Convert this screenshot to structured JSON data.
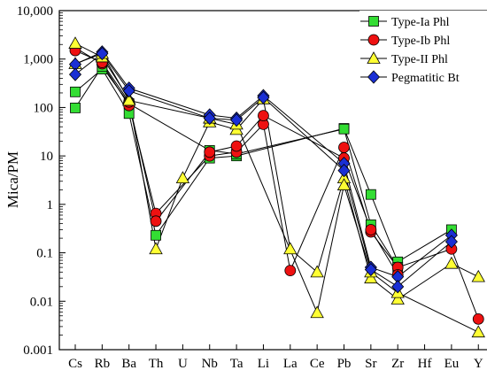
{
  "chart_data": {
    "type": "line",
    "ylabel": "Mica/PM",
    "yscale": "log",
    "ylim": [
      0.001,
      10000
    ],
    "ytick_labels": [
      "0.001",
      "0.01",
      "0.1",
      "1",
      "10",
      "100",
      "1,000",
      "10,000"
    ],
    "categories": [
      "Cs",
      "Rb",
      "Ba",
      "Th",
      "U",
      "Nb",
      "Ta",
      "Li",
      "La",
      "Ce",
      "Pb",
      "Sr",
      "Zr",
      "Hf",
      "Eu",
      "Y"
    ],
    "legend_position": "top-right",
    "series": [
      {
        "name": "Type-Ia Phl",
        "marker": "square",
        "color": "#33dd33",
        "samples": [
          {
            "Cs": 210,
            "Rb": 620,
            "Ba": 75,
            "Th": 0.23,
            "Nb": 9,
            "Ta": 10,
            "Pb": 37,
            "Sr": 1.6,
            "Zr": 0.065,
            "Eu": 0.3
          },
          {
            "Cs": 98,
            "Rb": 700,
            "Ba": 120,
            "Nb": 13,
            "Ta": 11,
            "Pb": 36,
            "Sr": 0.38,
            "Zr": 0.05
          }
        ]
      },
      {
        "name": "Type-Ib Phl",
        "marker": "circle",
        "color": "#ee1111",
        "samples": [
          {
            "Cs": 1700,
            "Rb": 800,
            "Ba": 110,
            "Th": 0.65,
            "Nb": 10,
            "Ta": 12,
            "Li": 45,
            "La": 0.043,
            "Pb": 15,
            "Sr": 0.27,
            "Zr": 0.05,
            "Eu": 0.12,
            "Y": 0.0043
          },
          {
            "Cs": 1500,
            "Rb": 850,
            "Ba": 130,
            "Th": 0.45,
            "Nb": 12,
            "Ta": 16,
            "Li": 68,
            "Pb": 9,
            "Sr": 0.3,
            "Zr": 0.035
          }
        ]
      },
      {
        "name": "Type-II Phl",
        "marker": "triangle",
        "color": "#ffff33",
        "samples": [
          {
            "Cs": 2100,
            "Rb": 1100,
            "Ba": 150,
            "Th": 0.12,
            "U": 3.5,
            "Nb": 50,
            "Ta": 35,
            "Li": 150,
            "La": 0.12,
            "Ce": 0.04,
            "Pb": 3.5,
            "Sr": 0.03,
            "Zr": 0.011,
            "Eu": 0.06,
            "Y": 0.032
          },
          {
            "Cs": 800,
            "Rb": 1300,
            "Ba": 140,
            "Nb": 60,
            "Ta": 45,
            "Ce": 0.0058,
            "Pb": 2.5,
            "Sr": 0.04,
            "Zr": 0.015,
            "Y": 0.0023
          }
        ]
      },
      {
        "name": "Pegmatitic Bt",
        "marker": "diamond",
        "color": "#1a2fd4",
        "samples": [
          {
            "Cs": 780,
            "Rb": 1400,
            "Ba": 250,
            "Nb": 70,
            "Ta": 60,
            "Li": 175,
            "Pb": 7,
            "Sr": 0.05,
            "Zr": 0.032,
            "Eu": 0.23
          },
          {
            "Cs": 480,
            "Rb": 1300,
            "Ba": 220,
            "Nb": 60,
            "Ta": 55,
            "Li": 160,
            "Pb": 5,
            "Sr": 0.045,
            "Zr": 0.02,
            "Eu": 0.17
          }
        ]
      }
    ]
  }
}
